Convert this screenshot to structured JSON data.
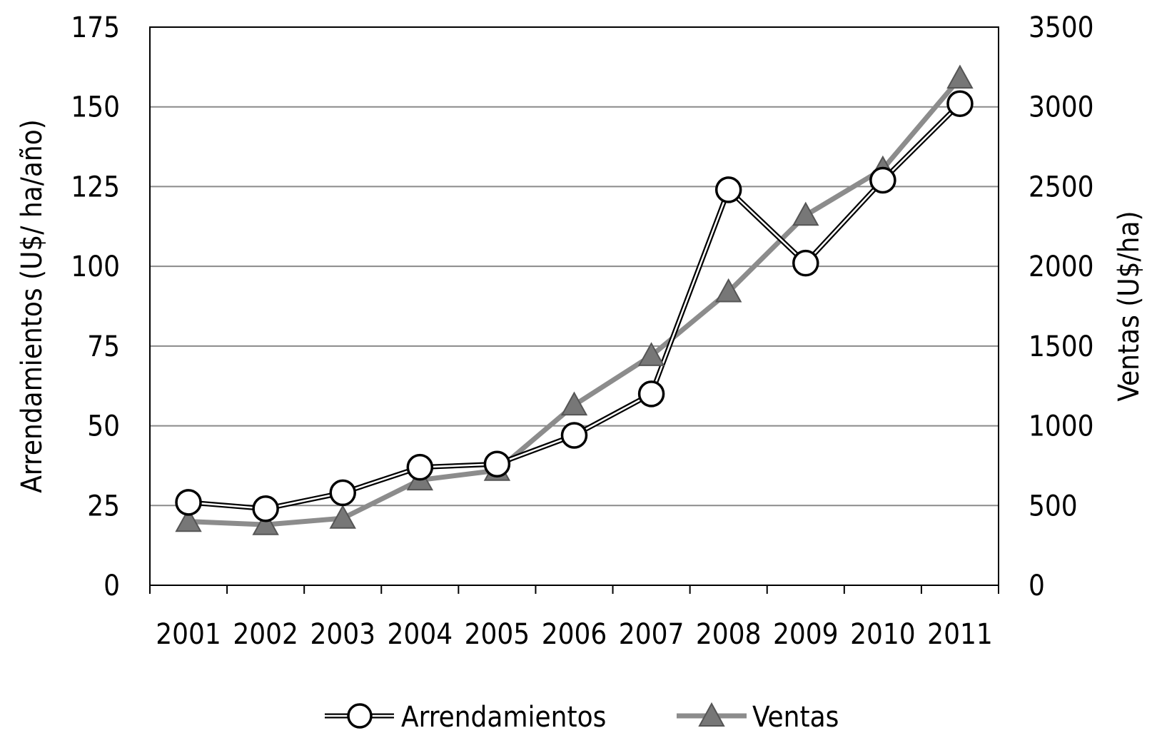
{
  "chart_data": {
    "type": "line",
    "categories": [
      "2001",
      "2002",
      "2003",
      "2004",
      "2005",
      "2006",
      "2007",
      "2008",
      "2009",
      "2010",
      "2011"
    ],
    "series": [
      {
        "name": "Arrendamientos",
        "axis": "left",
        "values": [
          26,
          24,
          29,
          37,
          38,
          47,
          60,
          124,
          101,
          127,
          151
        ],
        "color": "#ffffff",
        "marker": "circle"
      },
      {
        "name": "Ventas",
        "axis": "right",
        "values": [
          400,
          380,
          420,
          660,
          720,
          1130,
          1440,
          1840,
          2320,
          2610,
          3180
        ],
        "color": "#8c8c8c",
        "marker": "triangle"
      }
    ],
    "ylabel": "Arrendamientos  (U$/ ha/año)",
    "ylabel_right": "Ventas (U$/ha)",
    "ylim": [
      0,
      175
    ],
    "ylim_right": [
      0,
      3500
    ],
    "yticks": [
      "0",
      "25",
      "50",
      "75",
      "100",
      "125",
      "150",
      "175"
    ],
    "yticks_right": [
      "0",
      "500",
      "1000",
      "1500",
      "2000",
      "2500",
      "3000",
      "3500"
    ],
    "grid": true,
    "legend_position": "bottom"
  }
}
